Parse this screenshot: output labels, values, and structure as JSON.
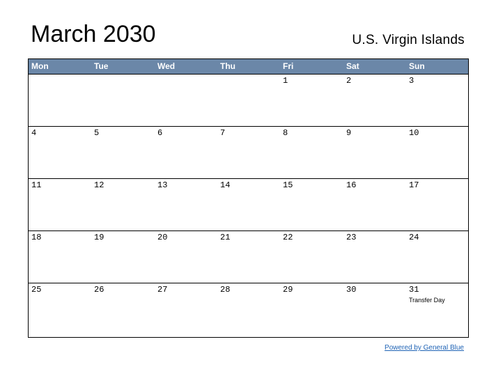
{
  "header": {
    "title": "March 2030",
    "region": "U.S. Virgin Islands"
  },
  "weekdays": [
    "Mon",
    "Tue",
    "Wed",
    "Thu",
    "Fri",
    "Sat",
    "Sun"
  ],
  "weeks": [
    [
      "",
      "",
      "",
      "",
      "1",
      "2",
      "3"
    ],
    [
      "4",
      "5",
      "6",
      "7",
      "8",
      "9",
      "10"
    ],
    [
      "11",
      "12",
      "13",
      "14",
      "15",
      "16",
      "17"
    ],
    [
      "18",
      "19",
      "20",
      "21",
      "22",
      "23",
      "24"
    ],
    [
      "25",
      "26",
      "27",
      "28",
      "29",
      "30",
      "31"
    ]
  ],
  "holidays": {
    "31": "Transfer Day"
  },
  "footer": {
    "powered_by": "Powered by General Blue"
  },
  "colors": {
    "header_bg": "#6b87a8",
    "link": "#1f63b5"
  }
}
